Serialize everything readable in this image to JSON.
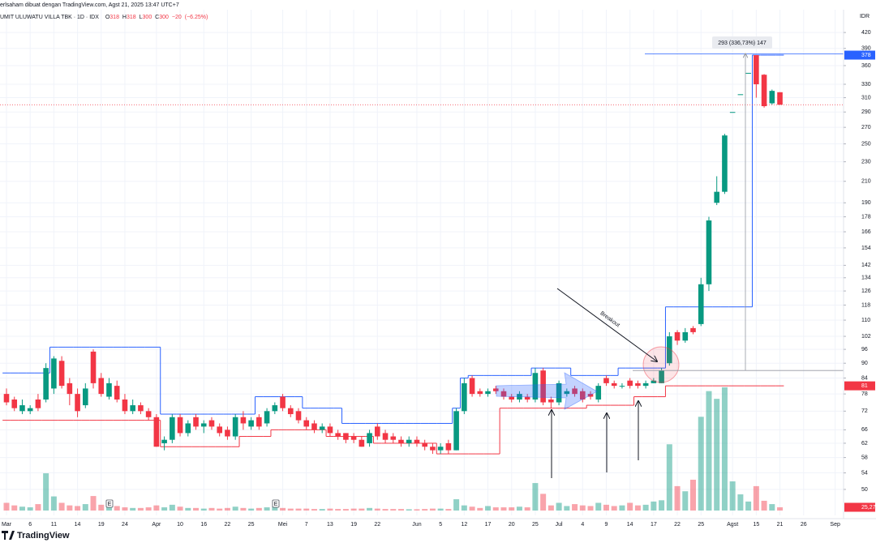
{
  "chart_data": {
    "type": "candlestick",
    "subtitle": "erlsaham dibuat dengan TradingView.com, Agst 21, 2025 13:47 UTC+7",
    "title": "UMIT ULUWATU VILLA TBK · 1D · IDX",
    "ohlc_labels": [
      "O",
      "H",
      "L",
      "C"
    ],
    "change": {
      "value": -20,
      "label": "−20"
    },
    "change_percent": {
      "value": -6.25,
      "label": "(−6.25%)"
    },
    "y_unit": "IDR",
    "log_scale": true,
    "grid": true,
    "ylim": [
      44.3,
      467
    ],
    "yticks": [
      420,
      390,
      360,
      330,
      310,
      290,
      270,
      250,
      230,
      210,
      190,
      178,
      166,
      154,
      142,
      134,
      126,
      118,
      110,
      102,
      96,
      90,
      84,
      78,
      72,
      66,
      62,
      58,
      54,
      50
    ],
    "up_color": "#089981",
    "down_color": "#f23645",
    "categories": [
      "Mar",
      null,
      null,
      "6",
      null,
      null,
      "11",
      null,
      null,
      "14",
      null,
      null,
      "19",
      null,
      null,
      "24",
      null,
      null,
      null,
      "Apr",
      null,
      null,
      "10",
      null,
      null,
      "16",
      null,
      null,
      "22",
      null,
      null,
      "25",
      null,
      null,
      null,
      "Mei",
      null,
      null,
      "7",
      null,
      null,
      "13",
      null,
      null,
      "19",
      null,
      null,
      "22",
      null,
      null,
      null,
      null,
      "Jun",
      null,
      null,
      "5",
      null,
      null,
      "12",
      null,
      null,
      "17",
      null,
      null,
      "20",
      null,
      null,
      "25",
      null,
      null,
      "Jul",
      null,
      null,
      "4",
      null,
      null,
      "9",
      null,
      null,
      "14",
      null,
      null,
      "17",
      null,
      null,
      "22",
      null,
      null,
      "25",
      null,
      null,
      null,
      "Agst",
      null,
      null,
      "15",
      null,
      null,
      "21",
      null,
      null,
      "26",
      null,
      null,
      null,
      "Sep"
    ],
    "open": [
      78,
      76,
      72,
      72,
      76,
      76,
      80,
      91,
      82,
      78,
      74,
      95,
      84,
      77,
      81,
      76,
      72,
      74,
      72,
      70,
      62,
      63,
      70,
      65,
      70,
      67,
      69,
      67,
      66,
      64,
      70,
      67,
      70,
      68,
      72,
      77,
      73,
      72,
      69,
      68,
      66,
      67,
      65,
      65,
      64,
      63,
      62,
      67,
      65,
      64,
      63,
      62,
      63,
      62,
      61,
      60,
      62,
      60,
      72,
      84,
      79,
      78,
      80,
      79,
      77,
      76,
      77,
      76,
      87,
      76,
      75,
      78,
      80,
      79,
      78,
      76,
      84,
      82,
      81,
      83,
      82,
      81,
      82,
      82,
      90,
      104,
      100,
      106,
      108,
      130,
      190,
      200,
      290,
      315,
      348,
      378,
      345,
      302,
      318,
      null,
      null,
      null,
      null,
      null,
      null,
      null
    ],
    "high": [
      80,
      77,
      76,
      74,
      78,
      90,
      93,
      93,
      84,
      80,
      82,
      96,
      86,
      84,
      83,
      78,
      76,
      75,
      73,
      71,
      64,
      71,
      71,
      69,
      71,
      69,
      70,
      68,
      67,
      71,
      72,
      70,
      71,
      73,
      75,
      78,
      74,
      73,
      70,
      69,
      68,
      68,
      66,
      65,
      65,
      64,
      66,
      68,
      66,
      65,
      64,
      64,
      64,
      63,
      62,
      62,
      63,
      73,
      84,
      85,
      80,
      80,
      81,
      80,
      78,
      79,
      78,
      88,
      88,
      77,
      83,
      80,
      81,
      80,
      79,
      82,
      85,
      83,
      82,
      84,
      83,
      83,
      84,
      88,
      104,
      105,
      106,
      107,
      134,
      178,
      215,
      262,
      290,
      315,
      348,
      378,
      346,
      322,
      318,
      null,
      null,
      null,
      null,
      null,
      null,
      null
    ],
    "low": [
      74,
      72,
      71,
      71,
      72,
      75,
      78,
      80,
      74,
      70,
      73,
      80,
      77,
      76,
      75,
      71,
      71,
      71,
      69,
      61,
      60,
      62,
      64,
      64,
      66,
      65,
      66,
      64,
      63,
      63,
      66,
      66,
      66,
      67,
      71,
      72,
      70,
      68,
      66,
      65,
      65,
      64,
      63,
      62,
      62,
      61,
      61,
      63,
      62,
      62,
      61,
      61,
      61,
      60,
      59,
      59,
      59,
      60,
      71,
      77,
      77,
      77,
      78,
      76,
      75,
      75,
      75,
      75,
      74,
      73,
      74,
      77,
      77,
      75,
      76,
      75,
      81,
      80,
      80,
      80,
      80,
      80,
      82,
      82,
      89,
      98,
      99,
      103,
      107,
      126,
      188,
      198,
      290,
      315,
      348,
      310,
      296,
      300,
      300,
      null,
      null,
      null,
      null,
      null,
      null,
      null
    ],
    "close": [
      75,
      73,
      74,
      73,
      73,
      88,
      92,
      81,
      78,
      72,
      80,
      82,
      78,
      82,
      76,
      72,
      74,
      72,
      70,
      61,
      63,
      70,
      65,
      68,
      67,
      68,
      67,
      65,
      64,
      70,
      68,
      69,
      67,
      72,
      74,
      73,
      71,
      69,
      67,
      66,
      67,
      65,
      64,
      63,
      63,
      61,
      65,
      64,
      63,
      63,
      62,
      63,
      62,
      61,
      60,
      61,
      60,
      72,
      82,
      78,
      78,
      79,
      79,
      77,
      76,
      78,
      76,
      86,
      75,
      75,
      82,
      79,
      78,
      76,
      77,
      81,
      82,
      81,
      81,
      81,
      81,
      82,
      83,
      87,
      102,
      100,
      104,
      104,
      130,
      175,
      200,
      260,
      290,
      315,
      348,
      330,
      298,
      320,
      300,
      null,
      null,
      null,
      null,
      null,
      null,
      null
    ],
    "volume": [
      60,
      40,
      30,
      25,
      50,
      290,
      110,
      60,
      40,
      35,
      50,
      113,
      45,
      30,
      35,
      25,
      20,
      20,
      25,
      40,
      25,
      45,
      30,
      20,
      20,
      15,
      20,
      15,
      20,
      30,
      20,
      15,
      20,
      25,
      30,
      20,
      15,
      15,
      15,
      12,
      12,
      15,
      12,
      12,
      15,
      15,
      20,
      15,
      12,
      12,
      12,
      10,
      10,
      12,
      15,
      15,
      12,
      88,
      40,
      30,
      20,
      35,
      25,
      25,
      25,
      30,
      25,
      214,
      130,
      40,
      60,
      35,
      50,
      40,
      35,
      60,
      45,
      35,
      40,
      60,
      40,
      45,
      70,
      80,
      516,
      190,
      150,
      240,
      730,
      930,
      870,
      960,
      227,
      126,
      70,
      190,
      76,
      50,
      25.27,
      null,
      null,
      null,
      null,
      null,
      null,
      null
    ],
    "volume_ylim": [
      0,
      3900
    ],
    "volume_last_label": "25,27",
    "channel_upper": {
      "color": "#2962ff",
      "values": [
        86,
        86,
        86,
        86,
        86,
        86,
        97,
        97,
        97,
        97,
        97,
        97,
        97,
        97,
        97,
        97,
        97,
        97,
        97,
        97,
        71,
        71,
        71,
        71,
        71,
        71,
        71,
        71,
        71,
        71,
        71,
        71,
        77,
        77,
        77,
        77,
        77,
        77,
        73,
        73,
        73,
        73,
        73,
        68,
        68,
        68,
        68,
        68,
        68,
        68,
        68,
        68,
        68,
        68,
        68,
        68,
        68,
        73,
        84,
        85,
        85,
        85,
        85,
        85,
        85,
        85,
        85,
        88,
        88,
        88,
        88,
        88,
        85,
        85,
        85,
        85,
        85,
        85,
        88,
        88,
        88,
        88,
        88,
        88,
        117,
        117,
        117,
        117,
        117,
        117,
        117,
        117,
        117,
        117,
        117,
        378,
        378,
        378,
        378,
        null,
        null,
        null,
        null,
        null,
        null,
        null
      ]
    },
    "channel_lower": {
      "color": "#f23645",
      "values": [
        69,
        69,
        69,
        69,
        69,
        69,
        69,
        69,
        69,
        69,
        69,
        69,
        69,
        69,
        69,
        69,
        69,
        69,
        69,
        69,
        61,
        61,
        61,
        61,
        61,
        61,
        61,
        61,
        61,
        61,
        64,
        64,
        64,
        64,
        66,
        66,
        66,
        66,
        66,
        66,
        66,
        64,
        64,
        64,
        64,
        64,
        64,
        62,
        62,
        62,
        62,
        62,
        62,
        62,
        62,
        59,
        59,
        59,
        59,
        59,
        59,
        59,
        59,
        73,
        73,
        73,
        73,
        73,
        73,
        73,
        73,
        73,
        73,
        73,
        74,
        74,
        74,
        74,
        74,
        74,
        77,
        77,
        77,
        77,
        81,
        81,
        81,
        81,
        81,
        81,
        81,
        81,
        81,
        81,
        81,
        81,
        81,
        81,
        81,
        null,
        null,
        null,
        null,
        null,
        null,
        null
      ]
    },
    "price_labels": [
      {
        "value": 378,
        "color": "#2962ff"
      },
      {
        "value": 81,
        "color": "#f23645"
      }
    ],
    "measure": {
      "label": "293 (336,73%) 147",
      "top": 380,
      "bottom": 87
    },
    "breakout_label": "Breakout",
    "events": [
      "E",
      "E"
    ],
    "brand": "TradingView"
  }
}
